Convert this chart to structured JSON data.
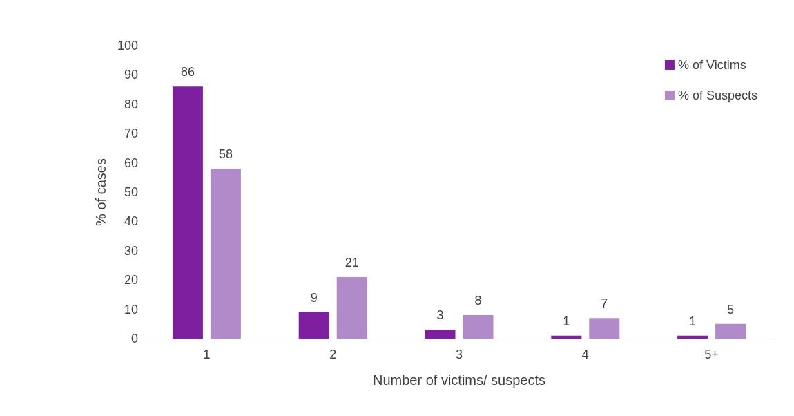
{
  "chart_data": {
    "type": "bar",
    "xlabel": "Number of victims/ suspects",
    "ylabel": "% of cases",
    "categories": [
      "1",
      "2",
      "3",
      "4",
      "5+"
    ],
    "series": [
      {
        "name": "% of Victims",
        "color": "#7e1fa0",
        "values": [
          86,
          9,
          3,
          1,
          1
        ]
      },
      {
        "name": "% of Suspects",
        "color": "#b18ac9",
        "values": [
          58,
          21,
          8,
          7,
          5
        ]
      }
    ],
    "ylim": [
      0,
      100
    ],
    "yticks": [
      0,
      10,
      20,
      30,
      40,
      50,
      60,
      70,
      80,
      90,
      100
    ],
    "grid": false,
    "legend": "top right",
    "data_labels": true
  }
}
